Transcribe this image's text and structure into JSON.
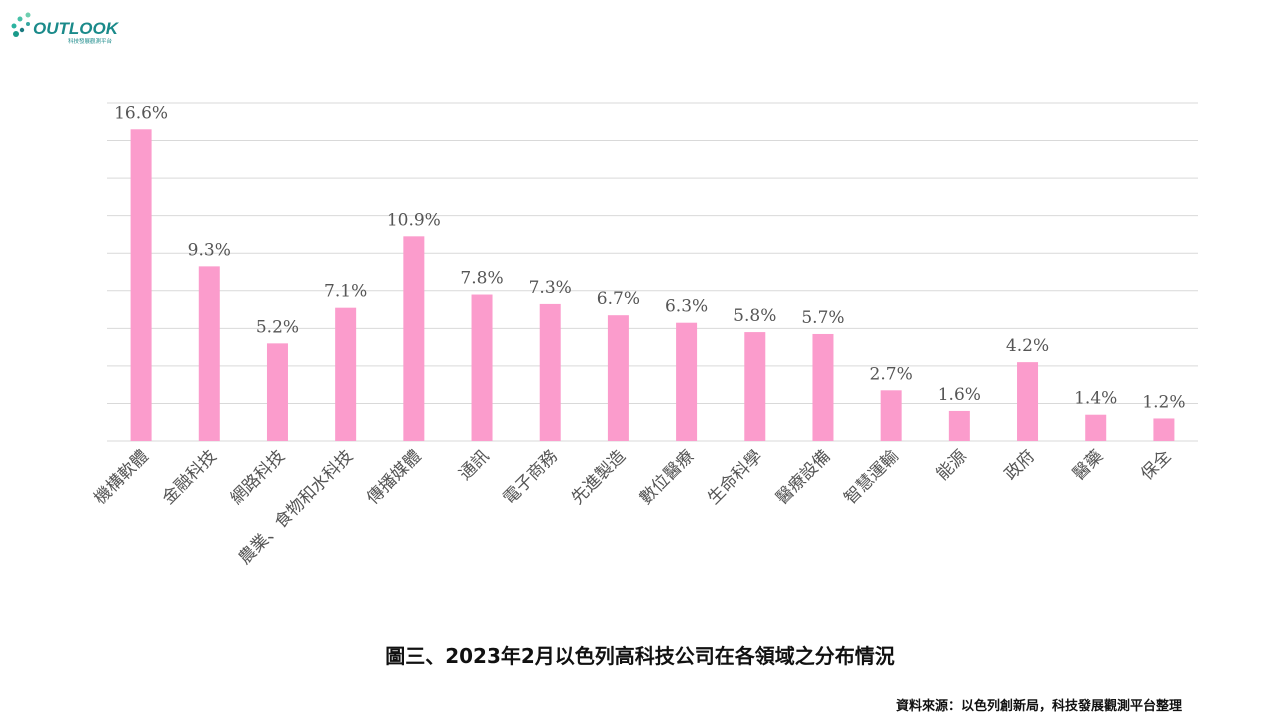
{
  "logo": {
    "name": "OUTLOOK",
    "subtitle": "科技發展觀測平台",
    "accent_color": "#1a9a8a",
    "icon": "leaf-dots-icon"
  },
  "chart_data": {
    "type": "bar",
    "categories": [
      "機構軟體",
      "金融科技",
      "網路科技",
      "農業、食物和水科技",
      "傳播媒體",
      "通訊",
      "電子商務",
      "先進製造",
      "數位醫療",
      "生命科學",
      "醫療設備",
      "智慧運輸",
      "能源",
      "政府",
      "醫藥",
      "保全"
    ],
    "values": [
      16.6,
      9.3,
      5.2,
      7.1,
      10.9,
      7.8,
      7.3,
      6.7,
      6.3,
      5.8,
      5.7,
      2.7,
      1.6,
      4.2,
      1.4,
      1.2
    ],
    "value_labels": [
      "16.6%",
      "9.3%",
      "5.2%",
      "7.1%",
      "10.9%",
      "7.8%",
      "7.3%",
      "6.7%",
      "6.3%",
      "5.8%",
      "5.7%",
      "2.7%",
      "1.6%",
      "4.2%",
      "1.4%",
      "1.2%"
    ],
    "ylim": [
      0,
      18
    ],
    "grid": true,
    "bar_color": "#fb9ccc",
    "grid_color": "#d9d9d9"
  },
  "caption": "圖三、2023年2月以色列高科技公司在各領域之分布情況",
  "source": "資料來源：以色列創新局，科技發展觀測平台整理"
}
